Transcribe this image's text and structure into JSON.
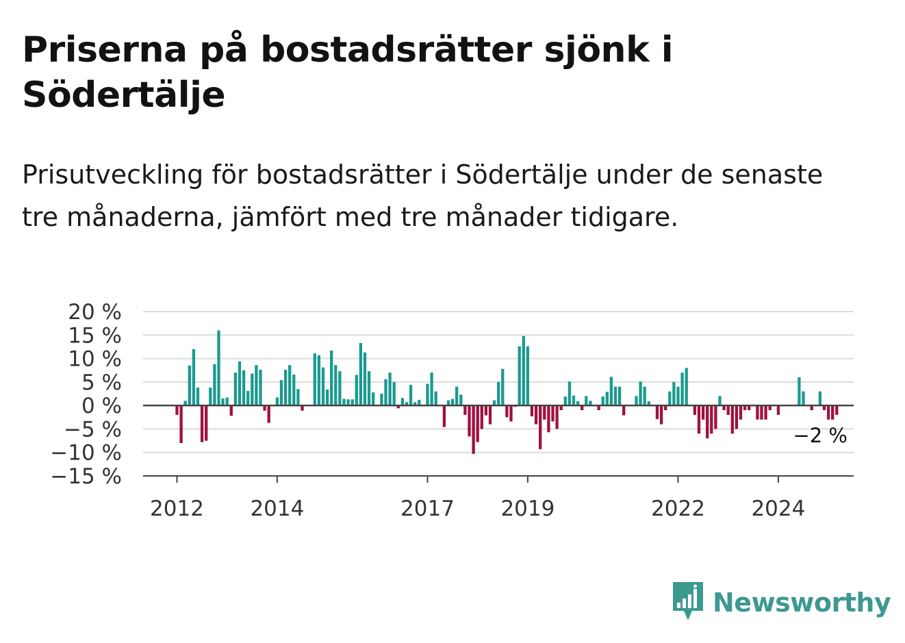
{
  "title": "Priserna på bostadsrätter sjönk i Södertälje",
  "subtitle": "Prisutveckling för bostadsrätter i Södertälje under de senaste tre månaderna, jämfört med tre månader tidigare.",
  "logo": {
    "text": "Newsworthy",
    "icon": "newsworthy-bar-chart-icon",
    "color": "#3d9990"
  },
  "colors": {
    "positive": "#1a9a8f",
    "negative": "#a0103f",
    "grid": "#dcdcdc",
    "axis": "#444444"
  },
  "chart_data": {
    "type": "bar",
    "title": "",
    "xlabel": "",
    "ylabel": "",
    "ylim": [
      -15,
      20
    ],
    "y_ticks": [
      20,
      15,
      10,
      5,
      0,
      -5,
      -10,
      -15
    ],
    "y_tick_labels": [
      "20 %",
      "15 %",
      "10 %",
      "5 %",
      "0 %",
      "−5 %",
      "−10 %",
      "−15 %"
    ],
    "x_ticks": [
      {
        "label": "2012",
        "index": 0
      },
      {
        "label": "2014",
        "index": 24
      },
      {
        "label": "2017",
        "index": 60
      },
      {
        "label": "2019",
        "index": 84
      },
      {
        "label": "2022",
        "index": 120
      },
      {
        "label": "2024",
        "index": 144
      }
    ],
    "start_period": "2012-01",
    "frequency": "monthly",
    "end_label": "−2 %",
    "values": [
      -2,
      -8,
      1,
      8.5,
      12,
      3.8,
      -7.8,
      -7.5,
      3.8,
      8.8,
      16,
      1.5,
      1.7,
      -2.2,
      7,
      9.4,
      7.5,
      3.1,
      6.8,
      8.6,
      7.6,
      -1.1,
      -3.7,
      0,
      1.7,
      5.4,
      7.6,
      8.6,
      6.6,
      3.5,
      -1.1,
      0,
      0,
      11.1,
      10.7,
      8.1,
      3.4,
      11.7,
      8.6,
      7.3,
      1.4,
      1.3,
      1.3,
      6.5,
      13.3,
      11.3,
      7.3,
      2.8,
      0,
      2.5,
      5.6,
      7,
      5,
      -0.6,
      1.6,
      0.7,
      4.4,
      0.7,
      1.2,
      0,
      4.6,
      7,
      3,
      0,
      -4.6,
      1.1,
      1.4,
      4,
      2.3,
      -2,
      -6.6,
      -10.3,
      -7.8,
      -5,
      -2.1,
      -4,
      1.1,
      5,
      7.8,
      -2.5,
      -3.4,
      -0.3,
      12.6,
      14.8,
      12.6,
      -2.3,
      -4,
      -9.3,
      -3,
      -5.7,
      -3.4,
      -5,
      -1,
      1.9,
      5.1,
      2.1,
      0.9,
      -1,
      2,
      1,
      0,
      -1,
      1.9,
      2.9,
      6.1,
      4,
      4,
      -2.1,
      0,
      0,
      2,
      5.1,
      4,
      0.9,
      0,
      -2.9,
      -4,
      -1,
      3,
      5,
      4,
      7,
      8,
      0,
      -2,
      -6,
      -3,
      -7,
      -6,
      -5,
      2,
      -1,
      -2,
      -6,
      -5,
      -3,
      -1,
      -1,
      0,
      -3,
      -3,
      -3,
      -1,
      0,
      -2,
      0,
      0,
      0,
      0,
      6,
      3,
      0,
      -1,
      0,
      3,
      -1,
      -3,
      -3,
      -2
    ]
  }
}
